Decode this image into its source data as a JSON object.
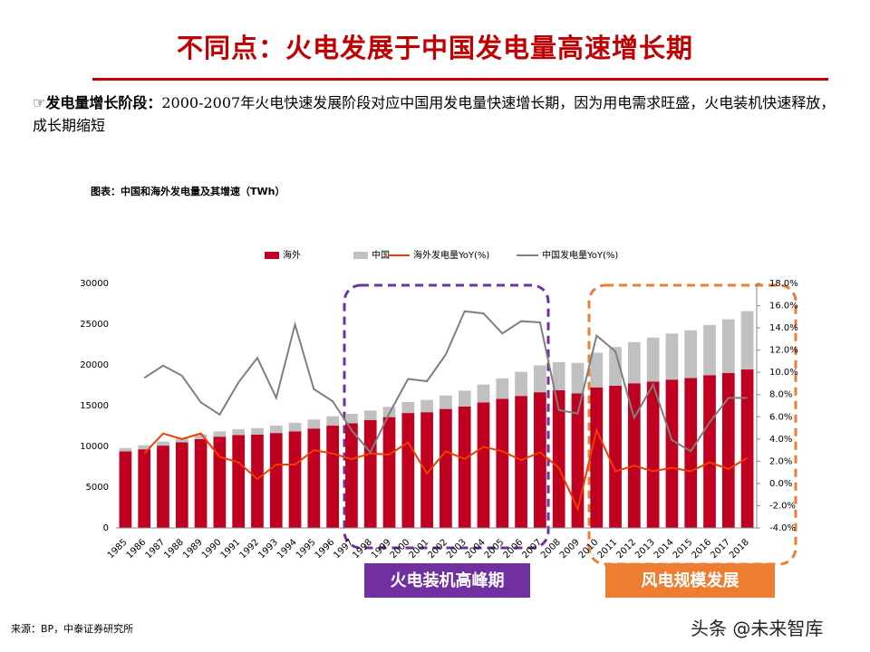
{
  "slide": {
    "title": "不同点：火电发展于中国发电量高速增长期",
    "bullet_symbol": "☞",
    "bullet_label": "发电量增长阶段：",
    "bullet_text": "2000-2007年火电快速发展阶段对应中国用发电量快速增长期，因为用电需求旺盛，火电装机快速释放，成长期缩短",
    "chart_caption": "图表：中国和海外发电量及其增速（TWh）",
    "source": "来源：BP，中泰证券研究所",
    "watermark": "头条 @未来智库"
  },
  "chart_data": {
    "type": "bar_line",
    "categories": [
      "1985",
      "1986",
      "1987",
      "1988",
      "1989",
      "1990",
      "1991",
      "1992",
      "1993",
      "1994",
      "1995",
      "1996",
      "1997",
      "1998",
      "1999",
      "2000",
      "2001",
      "2002",
      "2003",
      "2004",
      "2005",
      "2006",
      "2007",
      "2008",
      "2009",
      "2010",
      "2011",
      "2012",
      "2013",
      "2014",
      "2015",
      "2016",
      "2017",
      "2018"
    ],
    "series": [
      {
        "name": "海外",
        "type": "bar",
        "color": "#c00020",
        "values": [
          9400,
          9650,
          10100,
          10500,
          10900,
          11200,
          11400,
          11450,
          11650,
          11850,
          12200,
          12550,
          12850,
          13250,
          13600,
          14100,
          14200,
          14600,
          14900,
          15400,
          15850,
          16200,
          16650,
          16900,
          16500,
          17250,
          17450,
          17750,
          17950,
          18200,
          18400,
          18750,
          19000,
          19450
        ]
      },
      {
        "name": "中国",
        "type": "bar",
        "color": "#c0c0c0",
        "values": [
          400,
          500,
          500,
          500,
          600,
          650,
          700,
          800,
          900,
          1050,
          1100,
          1150,
          1150,
          1150,
          1250,
          1350,
          1500,
          1650,
          1950,
          2200,
          2500,
          2950,
          3300,
          3450,
          3750,
          4250,
          4750,
          5050,
          5400,
          5650,
          5850,
          6150,
          6600,
          7150
        ]
      },
      {
        "name": "海外发电量YoY(%)",
        "type": "line",
        "axis": "y2",
        "color": "#f03c00",
        "values": [
          null,
          2.7,
          4.5,
          4.0,
          4.5,
          2.4,
          1.9,
          0.4,
          1.7,
          1.7,
          3.0,
          2.7,
          2.2,
          2.7,
          2.6,
          3.7,
          0.9,
          2.9,
          2.2,
          3.3,
          2.9,
          2.1,
          2.8,
          1.4,
          -2.3,
          4.8,
          1.1,
          1.6,
          1.1,
          1.4,
          1.1,
          1.9,
          1.3,
          2.3
        ]
      },
      {
        "name": "中国发电量YoY(%)",
        "type": "line",
        "axis": "y2",
        "color": "#7f7f7f",
        "values": [
          null,
          9.5,
          10.6,
          9.7,
          7.3,
          6.2,
          9.1,
          11.3,
          7.7,
          14.3,
          8.5,
          7.4,
          4.8,
          2.8,
          6.3,
          9.4,
          9.2,
          11.6,
          15.5,
          15.3,
          13.5,
          14.6,
          14.5,
          6.6,
          6.3,
          13.3,
          11.9,
          5.9,
          8.9,
          3.9,
          2.9,
          5.5,
          7.7,
          7.7
        ]
      }
    ],
    "ylim": [
      0,
      30000
    ],
    "yticks": [
      0,
      5000,
      10000,
      15000,
      20000,
      25000,
      30000
    ],
    "y2lim": [
      -4,
      18
    ],
    "y2ticks": [
      {
        "value": -4,
        "label": "-4.0%"
      },
      {
        "value": -2,
        "label": "-2.0%"
      },
      {
        "value": 0,
        "label": "0.0%"
      },
      {
        "value": 2,
        "label": "2.0%"
      },
      {
        "value": 4,
        "label": "4.0%"
      },
      {
        "value": 6,
        "label": "6.0%"
      },
      {
        "value": 8,
        "label": "8.0%"
      },
      {
        "value": 10,
        "label": "10.0%"
      },
      {
        "value": 12,
        "label": "12.0%"
      },
      {
        "value": 14,
        "label": "14.0%"
      },
      {
        "value": 16,
        "label": "16.0%"
      },
      {
        "value": 18,
        "label": "18.0%"
      }
    ],
    "stacked": true,
    "grid": false,
    "legend": "top",
    "annotations": [
      {
        "text": "火电装机高峰期",
        "color": "#7030a0"
      },
      {
        "text": "风电规模发展",
        "color": "#ed7d31"
      }
    ]
  }
}
